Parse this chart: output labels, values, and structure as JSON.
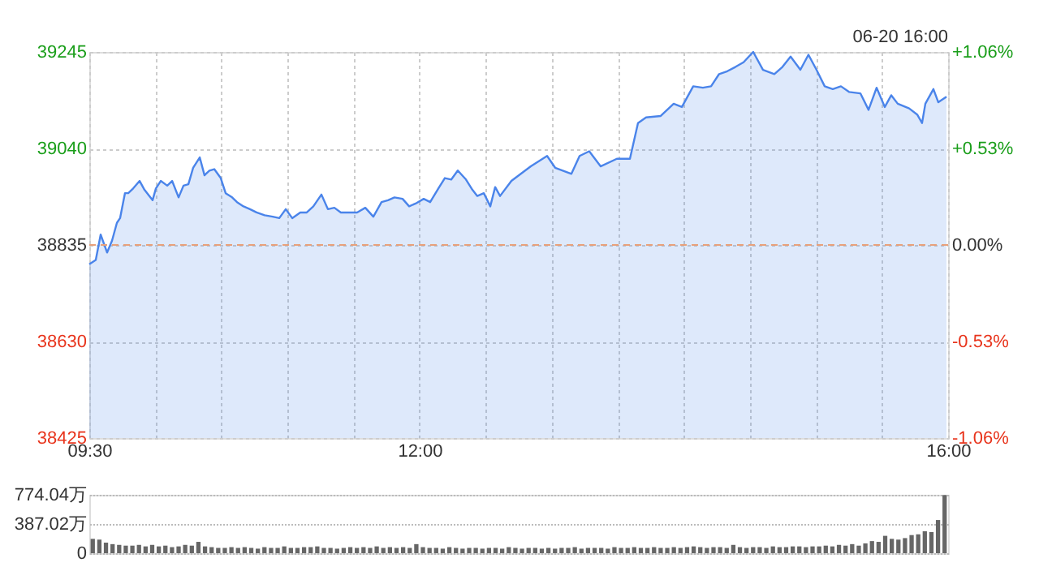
{
  "chart_data": [
    {
      "type": "area",
      "xlim": [
        9.5,
        16
      ],
      "xticks": [
        {
          "value": 9.5,
          "label": "09:30"
        },
        {
          "value": 10,
          "label": null
        },
        {
          "value": 10.5,
          "label": null
        },
        {
          "value": 11,
          "label": null
        },
        {
          "value": 11.5,
          "label": null
        },
        {
          "value": 12,
          "label": "12:00"
        },
        {
          "value": 12.5,
          "label": null
        },
        {
          "value": 13,
          "label": null
        },
        {
          "value": 13.5,
          "label": null
        },
        {
          "value": 14,
          "label": null
        },
        {
          "value": 14.5,
          "label": null
        },
        {
          "value": 15,
          "label": null
        },
        {
          "value": 15.5,
          "label": null
        },
        {
          "value": 16,
          "label": "16:00"
        }
      ],
      "ylim": [
        38425,
        39245
      ],
      "yticks": [
        38425,
        38630,
        38835,
        39040,
        39245
      ],
      "y2lim": [
        -1.06,
        1.06
      ],
      "y2ticks": [
        {
          "value": -1.06,
          "label": "-1.06%"
        },
        {
          "value": -0.53,
          "label": "-0.53%"
        },
        {
          "value": 0,
          "label": "0.00%"
        },
        {
          "value": 0.53,
          "label": "+0.53%"
        },
        {
          "value": 1.06,
          "label": "+1.06%"
        }
      ],
      "grid": true,
      "ref_lines": [
        {
          "axis": "y",
          "value": 38835,
          "color": "#e8a07a",
          "line_style": "dashed"
        }
      ],
      "annotations": [
        "06-20 16:00"
      ],
      "series": [
        {
          "color": "#4a84ea",
          "x": [
            9.5,
            9.549,
            9.586,
            9.635,
            9.672,
            9.709,
            9.733,
            9.77,
            9.795,
            9.832,
            9.881,
            9.918,
            9.979,
            10.004,
            10.041,
            10.09,
            10.127,
            10.176,
            10.213,
            10.25,
            10.286,
            10.336,
            10.372,
            10.409,
            10.446,
            10.495,
            10.532,
            10.581,
            10.618,
            10.667,
            10.716,
            10.766,
            10.827,
            10.888,
            10.938,
            10.987,
            11.036,
            11.097,
            11.146,
            11.196,
            11.257,
            11.306,
            11.355,
            11.404,
            11.466,
            11.527,
            11.589,
            11.65,
            11.712,
            11.761,
            11.81,
            11.871,
            11.921,
            11.97,
            12.031,
            12.08,
            12.142,
            12.191,
            12.24,
            12.289,
            12.351,
            12.4,
            12.437,
            12.486,
            12.535,
            12.572,
            12.609,
            12.695,
            12.842,
            12.965,
            13.026,
            13.149,
            13.211,
            13.284,
            13.37,
            13.493,
            13.592,
            13.653,
            13.714,
            13.825,
            13.923,
            13.985,
            14.071,
            14.144,
            14.206,
            14.267,
            14.329,
            14.39,
            14.452,
            14.525,
            14.599,
            14.685,
            14.746,
            14.808,
            14.882,
            14.943,
            15.004,
            15.066,
            15.127,
            15.189,
            15.25,
            15.336,
            15.398,
            15.459,
            15.521,
            15.57,
            15.619,
            15.705,
            15.766,
            15.803,
            15.828,
            15.889,
            15.926,
            15.988
          ],
          "values": [
            38794,
            38803,
            38857,
            38819,
            38844,
            38882,
            38892,
            38945,
            38945,
            38955,
            38971,
            38952,
            38930,
            38955,
            38971,
            38961,
            38971,
            38936,
            38961,
            38964,
            38999,
            39021,
            38983,
            38993,
            38996,
            38977,
            38945,
            38936,
            38926,
            38917,
            38911,
            38904,
            38898,
            38895,
            38892,
            38911,
            38892,
            38904,
            38904,
            38917,
            38942,
            38911,
            38914,
            38904,
            38904,
            38904,
            38914,
            38895,
            38926,
            38930,
            38936,
            38933,
            38917,
            38923,
            38933,
            38926,
            38955,
            38977,
            38974,
            38993,
            38974,
            38952,
            38939,
            38945,
            38917,
            38958,
            38939,
            38971,
            39002,
            39024,
            38999,
            38986,
            39024,
            39034,
            39002,
            39018,
            39018,
            39094,
            39106,
            39109,
            39135,
            39128,
            39172,
            39169,
            39172,
            39198,
            39204,
            39213,
            39223,
            39245,
            39207,
            39198,
            39213,
            39235,
            39207,
            39239,
            39207,
            39172,
            39166,
            39172,
            39160,
            39157,
            39122,
            39169,
            39128,
            39153,
            39135,
            39125,
            39112,
            39094,
            39135,
            39166,
            39138,
            39150
          ]
        }
      ]
    },
    {
      "type": "bar",
      "tick_labels": "y",
      "ylim": [
        0,
        774.04
      ],
      "yticks": [
        0,
        {
          "value": 387.02,
          "label": "387.02万"
        },
        {
          "value": 774.04,
          "label": "774.04万"
        }
      ],
      "grid": "y",
      "color": "#666666",
      "categories": [
        null,
        null,
        null,
        null,
        null,
        null,
        null,
        null,
        null,
        null,
        null,
        null,
        null,
        null,
        null,
        null,
        null,
        null,
        null,
        null,
        null,
        null,
        null,
        null,
        null,
        null,
        null,
        null,
        null,
        null,
        null,
        null,
        null,
        null,
        null,
        null,
        null,
        null,
        null,
        null,
        null,
        null,
        null,
        null,
        null,
        null,
        null,
        null,
        null,
        null,
        null,
        null,
        null,
        null,
        null,
        null,
        null,
        null,
        null,
        null,
        null,
        null,
        null,
        null,
        null,
        null,
        null,
        null,
        null,
        null,
        null,
        null,
        null,
        null,
        null,
        null,
        null,
        null,
        null,
        null,
        null,
        null,
        null,
        null,
        null,
        null,
        null,
        null,
        null,
        null,
        null,
        null,
        null,
        null,
        null,
        null,
        null,
        null,
        null,
        null,
        null,
        null,
        null,
        null,
        null,
        null,
        null,
        null,
        null,
        null,
        null,
        null,
        null,
        null,
        null,
        null,
        null,
        null,
        null,
        null,
        null,
        null,
        null,
        null,
        null,
        null,
        null,
        null,
        null,
        null
      ],
      "values": [
        190,
        180,
        140,
        120,
        110,
        100,
        100,
        110,
        90,
        110,
        90,
        100,
        80,
        90,
        110,
        100,
        150,
        90,
        80,
        70,
        70,
        80,
        70,
        80,
        70,
        60,
        80,
        70,
        70,
        90,
        70,
        70,
        80,
        80,
        90,
        70,
        70,
        60,
        70,
        80,
        70,
        80,
        70,
        90,
        70,
        80,
        70,
        80,
        70,
        120,
        80,
        70,
        70,
        60,
        80,
        70,
        60,
        70,
        70,
        60,
        70,
        70,
        60,
        80,
        70,
        60,
        70,
        70,
        60,
        70,
        60,
        70,
        70,
        80,
        60,
        70,
        70,
        70,
        60,
        80,
        70,
        70,
        80,
        70,
        70,
        80,
        70,
        70,
        80,
        70,
        80,
        90,
        80,
        70,
        80,
        80,
        70,
        110,
        80,
        70,
        80,
        80,
        70,
        90,
        80,
        80,
        90,
        90,
        80,
        90,
        90,
        100,
        90,
        110,
        100,
        120,
        100,
        130,
        160,
        150,
        230,
        190,
        180,
        200,
        240,
        250,
        290,
        280,
        440,
        770
      ]
    }
  ]
}
